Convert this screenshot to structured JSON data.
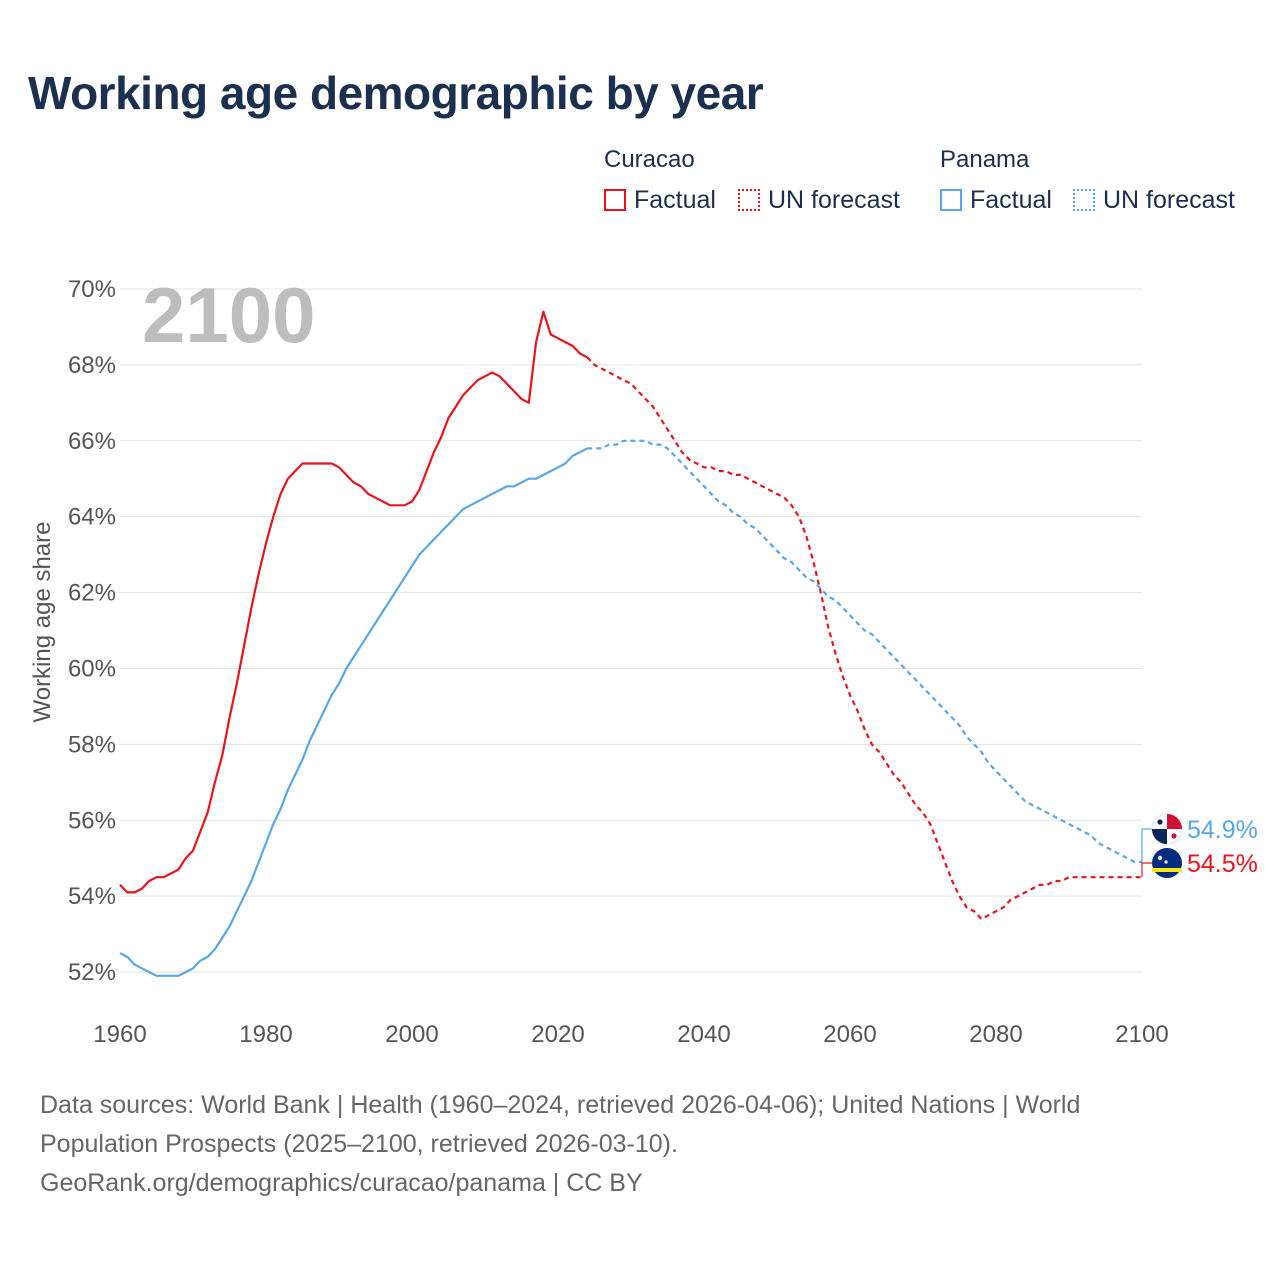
{
  "title": "Working age demographic by year",
  "legend": {
    "groups": [
      {
        "name": "Curacao",
        "color": "#e8141c",
        "items": [
          "Factual",
          "UN forecast"
        ]
      },
      {
        "name": "Panama",
        "color": "#5aa6e4",
        "items": [
          "Factual",
          "UN forecast"
        ]
      }
    ]
  },
  "sources": {
    "line1": "Data sources: World Bank | Health (1960–2024, retrieved 2026-04-06); United Nations | World",
    "line2": "Population Prospects (2025–2100, retrieved 2026-03-10).",
    "line3": "GeoRank.org/demographics/curacao/panama | CC BY"
  },
  "chart_data": {
    "type": "line",
    "title": "Working age demographic by year",
    "year_watermark": "2100",
    "ylabel": "Working age share",
    "xlabel": "",
    "xlim": [
      1960,
      2100
    ],
    "ylim": [
      51,
      70.5
    ],
    "x_ticks": [
      1960,
      1980,
      2000,
      2020,
      2040,
      2060,
      2080,
      2100
    ],
    "y_ticks": [
      52,
      54,
      56,
      58,
      60,
      62,
      64,
      66,
      68,
      70
    ],
    "y_tick_suffix": "%",
    "factual_end_year": 2024,
    "series": [
      {
        "name": "Curacao",
        "color": "#e8141c",
        "end_label": "54.5%",
        "flag_icon": "curacao-flag-icon",
        "points": [
          [
            1960,
            54.3
          ],
          [
            1961,
            54.1
          ],
          [
            1962,
            54.1
          ],
          [
            1963,
            54.2
          ],
          [
            1964,
            54.4
          ],
          [
            1965,
            54.5
          ],
          [
            1966,
            54.5
          ],
          [
            1967,
            54.6
          ],
          [
            1968,
            54.7
          ],
          [
            1969,
            55.0
          ],
          [
            1970,
            55.2
          ],
          [
            1971,
            55.7
          ],
          [
            1972,
            56.2
          ],
          [
            1973,
            57.0
          ],
          [
            1974,
            57.7
          ],
          [
            1975,
            58.7
          ],
          [
            1976,
            59.6
          ],
          [
            1977,
            60.6
          ],
          [
            1978,
            61.6
          ],
          [
            1979,
            62.5
          ],
          [
            1980,
            63.3
          ],
          [
            1981,
            64.0
          ],
          [
            1982,
            64.6
          ],
          [
            1983,
            65.0
          ],
          [
            1984,
            65.2
          ],
          [
            1985,
            65.4
          ],
          [
            1986,
            65.4
          ],
          [
            1987,
            65.4
          ],
          [
            1988,
            65.4
          ],
          [
            1989,
            65.4
          ],
          [
            1990,
            65.3
          ],
          [
            1991,
            65.1
          ],
          [
            1992,
            64.9
          ],
          [
            1993,
            64.8
          ],
          [
            1994,
            64.6
          ],
          [
            1995,
            64.5
          ],
          [
            1996,
            64.4
          ],
          [
            1997,
            64.3
          ],
          [
            1998,
            64.3
          ],
          [
            1999,
            64.3
          ],
          [
            2000,
            64.4
          ],
          [
            2001,
            64.7
          ],
          [
            2002,
            65.2
          ],
          [
            2003,
            65.7
          ],
          [
            2004,
            66.1
          ],
          [
            2005,
            66.6
          ],
          [
            2006,
            66.9
          ],
          [
            2007,
            67.2
          ],
          [
            2008,
            67.4
          ],
          [
            2009,
            67.6
          ],
          [
            2010,
            67.7
          ],
          [
            2011,
            67.8
          ],
          [
            2012,
            67.7
          ],
          [
            2013,
            67.5
          ],
          [
            2014,
            67.3
          ],
          [
            2015,
            67.1
          ],
          [
            2016,
            67.0
          ],
          [
            2017,
            68.6
          ],
          [
            2018,
            69.4
          ],
          [
            2019,
            68.8
          ],
          [
            2020,
            68.7
          ],
          [
            2021,
            68.6
          ],
          [
            2022,
            68.5
          ],
          [
            2023,
            68.3
          ],
          [
            2024,
            68.2
          ],
          [
            2025,
            68.0
          ],
          [
            2026,
            67.9
          ],
          [
            2027,
            67.8
          ],
          [
            2028,
            67.7
          ],
          [
            2029,
            67.6
          ],
          [
            2030,
            67.5
          ],
          [
            2031,
            67.3
          ],
          [
            2032,
            67.1
          ],
          [
            2033,
            66.9
          ],
          [
            2034,
            66.6
          ],
          [
            2035,
            66.3
          ],
          [
            2036,
            66.0
          ],
          [
            2037,
            65.7
          ],
          [
            2038,
            65.5
          ],
          [
            2039,
            65.4
          ],
          [
            2040,
            65.3
          ],
          [
            2041,
            65.3
          ],
          [
            2042,
            65.2
          ],
          [
            2043,
            65.2
          ],
          [
            2044,
            65.1
          ],
          [
            2045,
            65.1
          ],
          [
            2046,
            65.0
          ],
          [
            2047,
            64.9
          ],
          [
            2048,
            64.8
          ],
          [
            2049,
            64.7
          ],
          [
            2050,
            64.6
          ],
          [
            2051,
            64.5
          ],
          [
            2052,
            64.3
          ],
          [
            2053,
            64.0
          ],
          [
            2054,
            63.5
          ],
          [
            2055,
            62.8
          ],
          [
            2056,
            62.0
          ],
          [
            2057,
            61.1
          ],
          [
            2058,
            60.4
          ],
          [
            2059,
            59.8
          ],
          [
            2060,
            59.3
          ],
          [
            2061,
            58.9
          ],
          [
            2062,
            58.4
          ],
          [
            2063,
            58.0
          ],
          [
            2064,
            57.8
          ],
          [
            2065,
            57.5
          ],
          [
            2066,
            57.2
          ],
          [
            2067,
            57.0
          ],
          [
            2068,
            56.7
          ],
          [
            2069,
            56.4
          ],
          [
            2070,
            56.2
          ],
          [
            2071,
            55.9
          ],
          [
            2072,
            55.4
          ],
          [
            2073,
            54.9
          ],
          [
            2074,
            54.4
          ],
          [
            2075,
            54.0
          ],
          [
            2076,
            53.7
          ],
          [
            2077,
            53.6
          ],
          [
            2078,
            53.4
          ],
          [
            2079,
            53.5
          ],
          [
            2080,
            53.6
          ],
          [
            2081,
            53.7
          ],
          [
            2082,
            53.9
          ],
          [
            2083,
            54.0
          ],
          [
            2084,
            54.1
          ],
          [
            2085,
            54.2
          ],
          [
            2086,
            54.3
          ],
          [
            2087,
            54.3
          ],
          [
            2088,
            54.4
          ],
          [
            2089,
            54.4
          ],
          [
            2090,
            54.5
          ],
          [
            2091,
            54.5
          ],
          [
            2092,
            54.5
          ],
          [
            2093,
            54.5
          ],
          [
            2094,
            54.5
          ],
          [
            2095,
            54.5
          ],
          [
            2096,
            54.5
          ],
          [
            2097,
            54.5
          ],
          [
            2098,
            54.5
          ],
          [
            2099,
            54.5
          ],
          [
            2100,
            54.5
          ]
        ]
      },
      {
        "name": "Panama",
        "color": "#5aa6e4",
        "end_label": "54.9%",
        "flag_icon": "panama-flag-icon",
        "points": [
          [
            1960,
            52.5
          ],
          [
            1961,
            52.4
          ],
          [
            1962,
            52.2
          ],
          [
            1963,
            52.1
          ],
          [
            1964,
            52.0
          ],
          [
            1965,
            51.9
          ],
          [
            1966,
            51.9
          ],
          [
            1967,
            51.9
          ],
          [
            1968,
            51.9
          ],
          [
            1969,
            52.0
          ],
          [
            1970,
            52.1
          ],
          [
            1971,
            52.3
          ],
          [
            1972,
            52.4
          ],
          [
            1973,
            52.6
          ],
          [
            1974,
            52.9
          ],
          [
            1975,
            53.2
          ],
          [
            1976,
            53.6
          ],
          [
            1977,
            54.0
          ],
          [
            1978,
            54.4
          ],
          [
            1979,
            54.9
          ],
          [
            1980,
            55.4
          ],
          [
            1981,
            55.9
          ],
          [
            1982,
            56.3
          ],
          [
            1983,
            56.8
          ],
          [
            1984,
            57.2
          ],
          [
            1985,
            57.6
          ],
          [
            1986,
            58.1
          ],
          [
            1987,
            58.5
          ],
          [
            1988,
            58.9
          ],
          [
            1989,
            59.3
          ],
          [
            1990,
            59.6
          ],
          [
            1991,
            60.0
          ],
          [
            1992,
            60.3
          ],
          [
            1993,
            60.6
          ],
          [
            1994,
            60.9
          ],
          [
            1995,
            61.2
          ],
          [
            1996,
            61.5
          ],
          [
            1997,
            61.8
          ],
          [
            1998,
            62.1
          ],
          [
            1999,
            62.4
          ],
          [
            2000,
            62.7
          ],
          [
            2001,
            63.0
          ],
          [
            2002,
            63.2
          ],
          [
            2003,
            63.4
          ],
          [
            2004,
            63.6
          ],
          [
            2005,
            63.8
          ],
          [
            2006,
            64.0
          ],
          [
            2007,
            64.2
          ],
          [
            2008,
            64.3
          ],
          [
            2009,
            64.4
          ],
          [
            2010,
            64.5
          ],
          [
            2011,
            64.6
          ],
          [
            2012,
            64.7
          ],
          [
            2013,
            64.8
          ],
          [
            2014,
            64.8
          ],
          [
            2015,
            64.9
          ],
          [
            2016,
            65.0
          ],
          [
            2017,
            65.0
          ],
          [
            2018,
            65.1
          ],
          [
            2019,
            65.2
          ],
          [
            2020,
            65.3
          ],
          [
            2021,
            65.4
          ],
          [
            2022,
            65.6
          ],
          [
            2023,
            65.7
          ],
          [
            2024,
            65.8
          ],
          [
            2025,
            65.8
          ],
          [
            2026,
            65.8
          ],
          [
            2027,
            65.9
          ],
          [
            2028,
            65.9
          ],
          [
            2029,
            66.0
          ],
          [
            2030,
            66.0
          ],
          [
            2031,
            66.0
          ],
          [
            2032,
            66.0
          ],
          [
            2033,
            65.9
          ],
          [
            2034,
            65.9
          ],
          [
            2035,
            65.8
          ],
          [
            2036,
            65.6
          ],
          [
            2037,
            65.4
          ],
          [
            2038,
            65.2
          ],
          [
            2039,
            65.0
          ],
          [
            2040,
            64.8
          ],
          [
            2041,
            64.6
          ],
          [
            2042,
            64.4
          ],
          [
            2043,
            64.3
          ],
          [
            2044,
            64.1
          ],
          [
            2045,
            64.0
          ],
          [
            2046,
            63.8
          ],
          [
            2047,
            63.7
          ],
          [
            2048,
            63.5
          ],
          [
            2049,
            63.3
          ],
          [
            2050,
            63.1
          ],
          [
            2051,
            62.9
          ],
          [
            2052,
            62.8
          ],
          [
            2053,
            62.6
          ],
          [
            2054,
            62.4
          ],
          [
            2055,
            62.3
          ],
          [
            2056,
            62.1
          ],
          [
            2057,
            61.9
          ],
          [
            2058,
            61.8
          ],
          [
            2059,
            61.6
          ],
          [
            2060,
            61.4
          ],
          [
            2061,
            61.2
          ],
          [
            2062,
            61.0
          ],
          [
            2063,
            60.9
          ],
          [
            2064,
            60.7
          ],
          [
            2065,
            60.5
          ],
          [
            2066,
            60.3
          ],
          [
            2067,
            60.1
          ],
          [
            2068,
            59.9
          ],
          [
            2069,
            59.7
          ],
          [
            2070,
            59.5
          ],
          [
            2071,
            59.3
          ],
          [
            2072,
            59.1
          ],
          [
            2073,
            58.9
          ],
          [
            2074,
            58.7
          ],
          [
            2075,
            58.5
          ],
          [
            2076,
            58.2
          ],
          [
            2077,
            58.0
          ],
          [
            2078,
            57.8
          ],
          [
            2079,
            57.5
          ],
          [
            2080,
            57.3
          ],
          [
            2081,
            57.1
          ],
          [
            2082,
            56.9
          ],
          [
            2083,
            56.7
          ],
          [
            2084,
            56.5
          ],
          [
            2085,
            56.4
          ],
          [
            2086,
            56.3
          ],
          [
            2087,
            56.2
          ],
          [
            2088,
            56.1
          ],
          [
            2089,
            56.0
          ],
          [
            2090,
            55.9
          ],
          [
            2091,
            55.8
          ],
          [
            2092,
            55.7
          ],
          [
            2093,
            55.6
          ],
          [
            2094,
            55.4
          ],
          [
            2095,
            55.3
          ],
          [
            2096,
            55.2
          ],
          [
            2097,
            55.1
          ],
          [
            2098,
            55.0
          ],
          [
            2099,
            54.9
          ],
          [
            2100,
            54.9
          ]
        ]
      }
    ]
  }
}
